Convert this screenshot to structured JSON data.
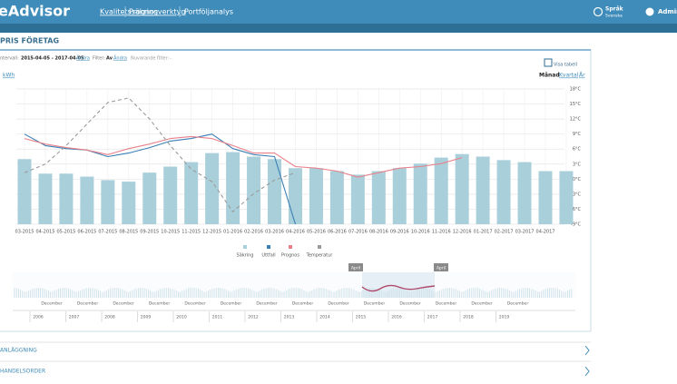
{
  "header": {
    "brand": "eAdvisor",
    "nav": [
      "Kvalitetssäkring",
      "Prognosverktyg",
      "Portföljanalys"
    ],
    "language_label": "Språk",
    "language": "Svenska",
    "user": "Administrat"
  },
  "card": {
    "title": "PRIS FÖRETAG",
    "interval_label": "ntervall:",
    "interval": "2015-04-05 - 2017-04-05",
    "change": "Ändra",
    "filter_label": "Filter:",
    "filter": "Av",
    "filter_change": "Ändra",
    "current_filter_label": "Nuvarande filter:",
    "current_filter": "-",
    "unit": "kWh",
    "show_table": "Visa tabell",
    "period_label": "Månad",
    "periods": [
      "Kvartal",
      "År"
    ]
  },
  "chart_data": {
    "type": "bar",
    "categories": [
      "03-2015",
      "04-2015",
      "05-2015",
      "06-2015",
      "07-2015",
      "08-2015",
      "09-2015",
      "10-2015",
      "11-2015",
      "12-2015",
      "01-2016",
      "02-2016",
      "03-2016",
      "04-2016",
      "05-2016",
      "06-2016",
      "07-2016",
      "08-2016",
      "09-2016",
      "10-2016",
      "11-2016",
      "12-2016",
      "01-2017",
      "02-2017",
      "03-2017",
      "04-2017",
      null
    ],
    "series": [
      {
        "name": "Säkring",
        "type": "bar",
        "axis": "y2",
        "color": "#a9d0da",
        "values": [
          4.0,
          1.1,
          1.1,
          0.5,
          -0.2,
          -0.5,
          1.3,
          2.5,
          3.4,
          5.2,
          5.4,
          4.5,
          4.0,
          2.2,
          2.2,
          1.6,
          0.9,
          1.6,
          2.2,
          3.1,
          4.3,
          5.0,
          4.5,
          3.8,
          3.4,
          1.6,
          1.6
        ]
      },
      {
        "name": "Uttfall",
        "type": "line",
        "axis": "y2",
        "color": "#3a7fb5",
        "values": [
          9,
          6.7,
          6.1,
          5.8,
          4.5,
          5.2,
          6.3,
          7.6,
          8.1,
          9,
          6.1,
          4.9,
          4.5,
          -9,
          null,
          null,
          null,
          null,
          null,
          null,
          null,
          null,
          null,
          null,
          null,
          null,
          null
        ]
      },
      {
        "name": "Prognos",
        "type": "line",
        "axis": "y2",
        "color": "#e8808a",
        "values": [
          8.1,
          7,
          6.3,
          5.8,
          4.9,
          6.1,
          7,
          8.1,
          8.5,
          8.1,
          6.7,
          5.2,
          5.2,
          2.5,
          2.2,
          1.6,
          0.4,
          1.3,
          2.2,
          2.5,
          3.1,
          4.3,
          null,
          null,
          null,
          null,
          null
        ]
      },
      {
        "name": "Temperatur",
        "type": "line",
        "dash": true,
        "axis": "y2",
        "color": "#9a9a9a",
        "values": [
          1.3,
          3,
          6.7,
          11,
          15.3,
          16.2,
          12,
          6.7,
          2,
          -0.5,
          -6.5,
          -2.9,
          -0.2,
          1.3,
          null,
          null,
          null,
          null,
          null,
          null,
          null,
          null,
          null,
          null,
          null,
          null,
          null
        ]
      }
    ],
    "y2lim": [
      -9,
      18
    ],
    "y2ticks": [
      {
        "value": 18,
        "label": "18°C"
      },
      {
        "value": 15,
        "label": "15°C"
      },
      {
        "value": 12,
        "label": "12°C"
      },
      {
        "value": 9,
        "label": "9°C"
      },
      {
        "value": 6,
        "label": "6°C"
      },
      {
        "value": 3,
        "label": "3°C"
      },
      {
        "value": 0,
        "label": "0°C"
      },
      {
        "value": -3,
        "label": "-3°C"
      },
      {
        "value": -6,
        "label": "-6°C"
      },
      {
        "value": -9,
        "label": "-9°C"
      }
    ],
    "grid": true,
    "legend": "bottom"
  },
  "navigator": {
    "flags": [
      "April",
      "April"
    ],
    "months": [
      "December",
      "December",
      "December",
      "December",
      "December",
      "December",
      "December",
      "December",
      "December",
      "December",
      "December",
      "December",
      "December",
      "December"
    ],
    "years": [
      "2006",
      "2007",
      "2008",
      "2009",
      "2010",
      "2011",
      "2012",
      "2013",
      "2014",
      "2015",
      "2016",
      "2017",
      "2018",
      "2019"
    ]
  },
  "sections": [
    "ANLÄGGNING",
    "HANDELSORDER"
  ]
}
